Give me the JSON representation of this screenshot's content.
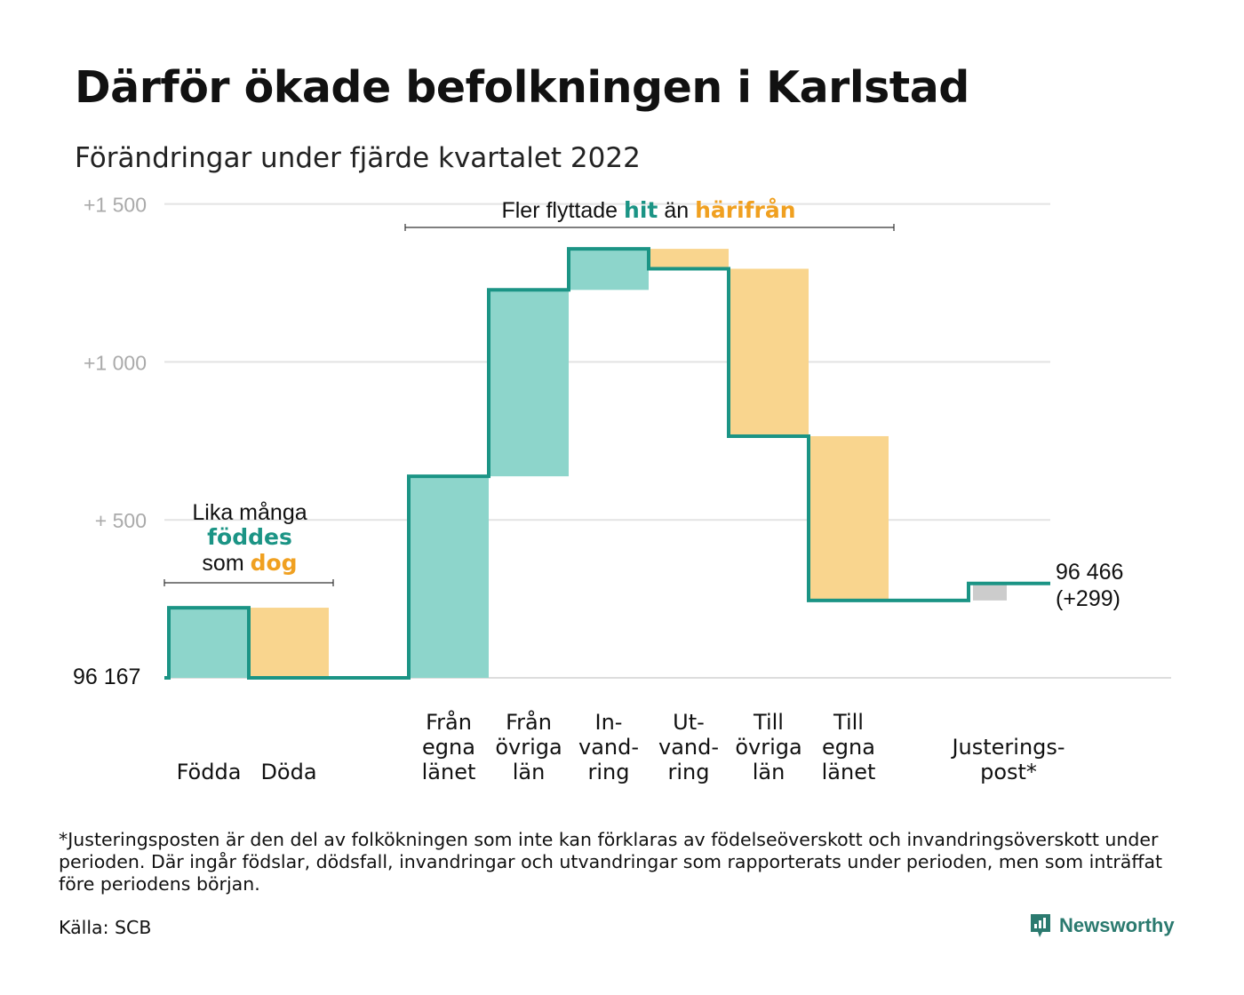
{
  "title": "Därför ökade befolkningen i Karlstad",
  "subtitle": "Förändringar under fjärde kvartalet 2022",
  "colors": {
    "inflow": "#8dd5cb",
    "outflow": "#f9d58e",
    "adjustment": "#cccccc",
    "line": "#1b9485",
    "teal_text": "#1b9485",
    "orange_text": "#f0a020",
    "grid": "#e3e3e3",
    "tick": "#aaaaaa"
  },
  "annotations": {
    "births_line1": "Lika många",
    "births_word_born": "föddes",
    "births_word_som": "som",
    "births_word_died": "dog",
    "moves_prefix": "Fler flyttade",
    "moves_word_here": "hit",
    "moves_word_than": "än",
    "moves_word_from": "härifrån"
  },
  "start_label": "96 167",
  "end_label_value": "96 466",
  "end_label_change": "(+299)",
  "footnote": "*Justeringsposten är den del av folkökningen som inte kan förklaras av födelseöverskott och invandringsöverskott under perioden. Där ingår födslar, dödsfall, invandringar och utvandringar som rapporterats under perioden, men som inträffat före periodens början.",
  "source": "Källa: SCB",
  "brand": "Newsworthy",
  "chart_data": {
    "type": "waterfall",
    "start_value": 96167,
    "end_value": 96466,
    "y_ticks": [
      {
        "value": 0,
        "label": ""
      },
      {
        "value": 500,
        "label": "+ 500"
      },
      {
        "value": 1000,
        "label": "+1 000"
      },
      {
        "value": 1500,
        "label": "+1 500"
      }
    ],
    "ylim": [
      0,
      1500
    ],
    "steps": [
      {
        "label": [
          "Födda"
        ],
        "delta": 222,
        "kind": "inflow"
      },
      {
        "label": [
          "Döda"
        ],
        "delta": -222,
        "kind": "outflow"
      },
      {
        "label": [],
        "delta": 0,
        "kind": "gap"
      },
      {
        "label": [
          "Från",
          "egna",
          "länet"
        ],
        "delta": 638,
        "kind": "inflow"
      },
      {
        "label": [
          "Från",
          "övriga",
          "län"
        ],
        "delta": 590,
        "kind": "inflow"
      },
      {
        "label": [
          "In-",
          "vand-",
          "ring"
        ],
        "delta": 130,
        "kind": "inflow"
      },
      {
        "label": [
          "Ut-",
          "vand-",
          "ring"
        ],
        "delta": -63,
        "kind": "outflow"
      },
      {
        "label": [
          "Till",
          "övriga",
          "län"
        ],
        "delta": -530,
        "kind": "outflow"
      },
      {
        "label": [
          "Till",
          "egna",
          "länet"
        ],
        "delta": -520,
        "kind": "outflow"
      },
      {
        "label": [],
        "delta": 0,
        "kind": "gap"
      },
      {
        "label": [
          "Justerings-",
          "post*"
        ],
        "delta": 54,
        "kind": "adjustment"
      }
    ]
  }
}
